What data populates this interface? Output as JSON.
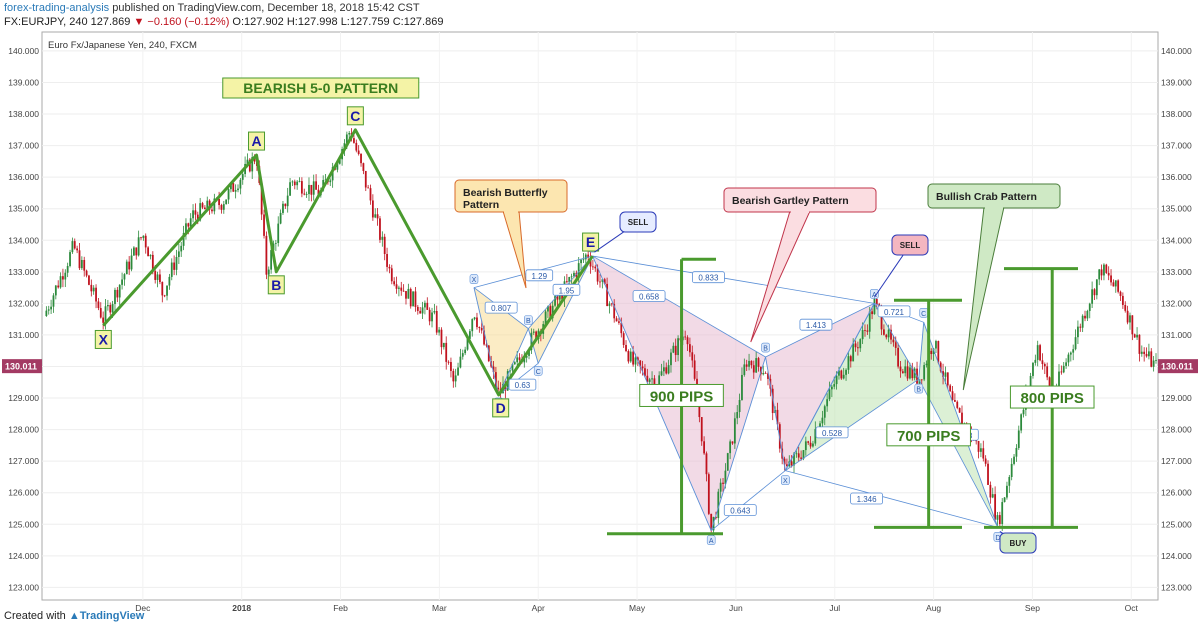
{
  "header": {
    "author": "forex-trading-analysis",
    "published": "published on TradingView.com, December 18, 2018 15:42 CST",
    "symbol": "FX:EURJPY, 240",
    "price": "127.869",
    "change": "−0.160 (−0.12%)",
    "ohlc_o": "O:127.902",
    "ohlc_h": "H:127.998",
    "ohlc_l": "L:127.759",
    "ohlc_c": "C:127.869"
  },
  "footer": {
    "created_with": "Created with",
    "brand": "TradingView"
  },
  "colors": {
    "pattern_green": "#4a9a2e",
    "label_yellow_bg": "#f4f3a6",
    "fib_blue": "#5b8fd6",
    "butterfly_fill": "#f8dc95",
    "gartley_fill": "#e7bcd2",
    "crab_fill": "#bfe3b3",
    "candle_down": "#c0121e",
    "candle_up": "#2c8a3c",
    "price_tag": "#a33a63"
  },
  "chart_data": {
    "type": "candlestick",
    "title": "Euro Fx/Japanese Yen, 240, FXCM",
    "ylim": [
      122.6,
      140.6
    ],
    "y_ticks": [
      "123.000",
      "124.000",
      "125.000",
      "126.000",
      "127.000",
      "128.000",
      "129.000",
      "130.000",
      "131.000",
      "132.000",
      "133.000",
      "134.000",
      "135.000",
      "136.000",
      "137.000",
      "138.000",
      "139.000",
      "140.000"
    ],
    "x_ticks": [
      {
        "label": "Dec",
        "t": 2.8
      },
      {
        "label": "2018",
        "t": 3.8
      },
      {
        "label": "Feb",
        "t": 4.8
      },
      {
        "label": "Mar",
        "t": 5.8
      },
      {
        "label": "Apr",
        "t": 6.8
      },
      {
        "label": "May",
        "t": 7.8
      },
      {
        "label": "Jun",
        "t": 8.8
      },
      {
        "label": "Jul",
        "t": 9.8
      },
      {
        "label": "Aug",
        "t": 10.8
      },
      {
        "label": "Sep",
        "t": 11.8
      },
      {
        "label": "Oct",
        "t": 12.8
      }
    ],
    "last_price_label": "130.011",
    "last_price": 130.011,
    "price_path": [
      [
        1.8,
        131.6
      ],
      [
        2.1,
        133.8
      ],
      [
        2.4,
        131.5
      ],
      [
        2.8,
        134.2
      ],
      [
        3.0,
        132.3
      ],
      [
        3.3,
        134.8
      ],
      [
        3.6,
        135.2
      ],
      [
        3.95,
        136.7
      ],
      [
        4.05,
        133.0
      ],
      [
        4.3,
        135.9
      ],
      [
        4.6,
        135.5
      ],
      [
        4.9,
        137.5
      ],
      [
        5.1,
        135.3
      ],
      [
        5.3,
        133.0
      ],
      [
        5.5,
        132.2
      ],
      [
        5.75,
        131.5
      ],
      [
        5.95,
        129.4
      ],
      [
        6.15,
        131.8
      ],
      [
        6.4,
        129.1
      ],
      [
        6.7,
        130.7
      ],
      [
        6.95,
        131.9
      ],
      [
        7.3,
        133.6
      ],
      [
        7.55,
        131.8
      ],
      [
        7.75,
        130.1
      ],
      [
        8.0,
        129.5
      ],
      [
        8.3,
        131.2
      ],
      [
        8.45,
        128.0
      ],
      [
        8.55,
        124.8
      ],
      [
        8.75,
        127.5
      ],
      [
        8.9,
        130.2
      ],
      [
        9.1,
        129.9
      ],
      [
        9.3,
        126.7
      ],
      [
        9.55,
        127.6
      ],
      [
        9.8,
        129.5
      ],
      [
        10.1,
        131.1
      ],
      [
        10.2,
        132.0
      ],
      [
        10.45,
        130.1
      ],
      [
        10.65,
        129.6
      ],
      [
        10.8,
        130.8
      ],
      [
        11.0,
        128.7
      ],
      [
        11.3,
        127.2
      ],
      [
        11.45,
        125.0
      ],
      [
        11.65,
        127.8
      ],
      [
        11.85,
        130.7
      ],
      [
        12.0,
        129.0
      ],
      [
        12.35,
        131.9
      ],
      [
        12.5,
        133.1
      ],
      [
        12.7,
        132.2
      ],
      [
        12.9,
        130.5
      ],
      [
        13.05,
        130.0
      ]
    ],
    "bearish_5_0": {
      "title": "BEARISH 5-0 PATTERN",
      "points": [
        {
          "label": "X",
          "t": 2.4,
          "y": 131.3
        },
        {
          "label": "A",
          "t": 3.95,
          "y": 136.7
        },
        {
          "label": "B",
          "t": 4.15,
          "y": 133.0
        },
        {
          "label": "C",
          "t": 4.95,
          "y": 137.5
        },
        {
          "label": "D",
          "t": 6.4,
          "y": 129.1
        },
        {
          "label": "E",
          "t": 7.35,
          "y": 133.5
        }
      ]
    },
    "bearish_butterfly": {
      "title": "Bearish Butterfly Pattern",
      "points": [
        {
          "label": "X",
          "t": 6.15,
          "y": 132.5
        },
        {
          "label": "A",
          "t": 6.4,
          "y": 129.1
        },
        {
          "label": "B",
          "t": 6.7,
          "y": 131.2
        },
        {
          "label": "C",
          "t": 6.8,
          "y": 130.1
        },
        {
          "label": "X",
          "t": 7.35,
          "y": 133.5
        }
      ],
      "ratios": [
        "0.807",
        "1.29",
        "0.63",
        "1.95"
      ],
      "signal": "SELL"
    },
    "bearish_gartley": {
      "title": "Bearish Gartley Pattern",
      "points": [
        {
          "label": "X",
          "t": 7.35,
          "y": 133.5
        },
        {
          "label": "A",
          "t": 8.55,
          "y": 124.8
        },
        {
          "label": "B",
          "t": 9.1,
          "y": 130.3
        },
        {
          "label": "C",
          "t": 9.3,
          "y": 126.7
        },
        {
          "label": "D",
          "t": 10.2,
          "y": 132.0
        }
      ],
      "ratios": [
        "0.658",
        "0.643",
        "1.413",
        "0.833"
      ],
      "signal": "SELL"
    },
    "bullish_crab": {
      "title": "Bullish Crab Pattern",
      "points": [
        {
          "label": "X",
          "t": 9.3,
          "y": 126.7
        },
        {
          "label": "A",
          "t": 10.2,
          "y": 132.0
        },
        {
          "label": "B",
          "t": 10.65,
          "y": 129.6
        },
        {
          "label": "C",
          "t": 10.7,
          "y": 131.4
        },
        {
          "label": "D",
          "t": 11.45,
          "y": 124.9
        }
      ],
      "ratios": [
        "0.528",
        "0.721",
        "3.148",
        "1.346"
      ],
      "signal": "BUY"
    },
    "pip_annotations": [
      {
        "label": "900 PIPS",
        "t": 8.25,
        "y_top": 133.4,
        "y_bottom": 124.7
      },
      {
        "label": "700 PIPS",
        "t": 10.75,
        "y_top": 132.1,
        "y_bottom": 124.9
      },
      {
        "label": "800 PIPS",
        "t": 12.0,
        "y_top": 133.1,
        "y_bottom": 124.9
      }
    ]
  }
}
